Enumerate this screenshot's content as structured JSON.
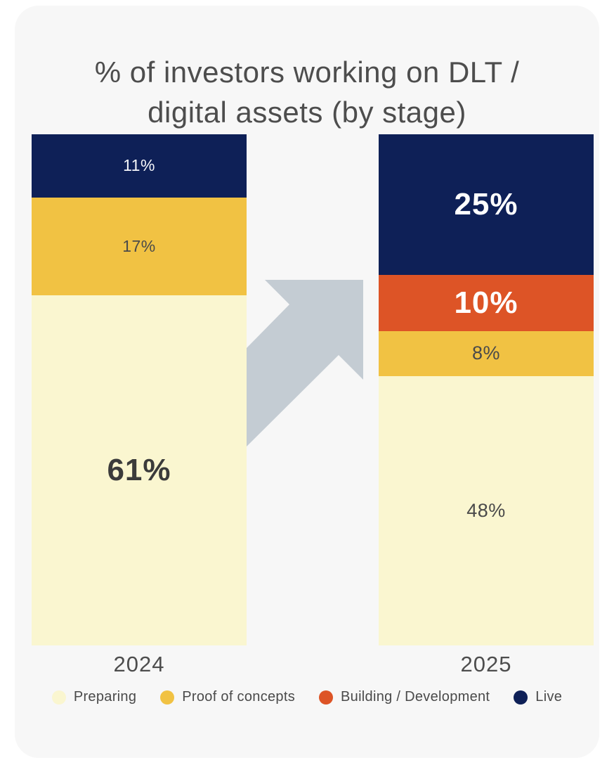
{
  "title": {
    "line1": "% of investors working on DLT /",
    "line2": "digital assets (by stage)"
  },
  "colors": {
    "page_bg": "#ffffff",
    "card_bg": "#f7f7f7",
    "title_text": "#4d4d4d",
    "axis_text": "#4d4d4d",
    "legend_text": "#4a4a4a",
    "navy": "#0e2057",
    "orange": "#dd5426",
    "yellow": "#f1c243",
    "cream": "#faf6d0",
    "arrow": "#c4ccd3"
  },
  "arrow": {
    "color": "#c4ccd3",
    "direction": "up-right"
  },
  "chart_data": {
    "type": "stacked-bar",
    "title": "% of investors working on DLT / digital assets (by stage)",
    "categories": [
      "2024",
      "2025"
    ],
    "series": [
      {
        "name": "Preparing",
        "color": "#faf6d0",
        "values": [
          61,
          48
        ]
      },
      {
        "name": "Proof of concepts",
        "color": "#f1c243",
        "values": [
          17,
          8
        ]
      },
      {
        "name": "Building / Development",
        "color": "#dd5426",
        "values": [
          0,
          10
        ]
      },
      {
        "name": "Live",
        "color": "#0e2057",
        "values": [
          11,
          25
        ]
      }
    ],
    "stack_order_top_to_bottom": [
      "Live",
      "Building / Development",
      "Proof of concepts",
      "Preparing"
    ],
    "value_label_format": "percent",
    "legend_position": "bottom",
    "grid": false,
    "bars": [
      {
        "category": "2024",
        "segments": [
          {
            "series": "Live",
            "value": 11,
            "label": "11%",
            "color": "#0e2057",
            "label_color": "#f5f6fa",
            "emphasis": "small"
          },
          {
            "series": "Proof of concepts",
            "value": 17,
            "label": "17%",
            "color": "#f1c243",
            "label_color": "#4a4a4a",
            "emphasis": "small"
          },
          {
            "series": "Preparing",
            "value": 61,
            "label": "61%",
            "color": "#faf6d0",
            "label_color": "#3b3b3b",
            "emphasis": "large"
          }
        ]
      },
      {
        "category": "2025",
        "segments": [
          {
            "series": "Live",
            "value": 25,
            "label": "25%",
            "color": "#0e2057",
            "label_color": "#ffffff",
            "emphasis": "large"
          },
          {
            "series": "Building / Development",
            "value": 10,
            "label": "10%",
            "color": "#dd5426",
            "label_color": "#ffffff",
            "emphasis": "large"
          },
          {
            "series": "Proof of concepts",
            "value": 8,
            "label": "8%",
            "color": "#f1c243",
            "label_color": "#4a4a4a",
            "emphasis": "medium"
          },
          {
            "series": "Preparing",
            "value": 48,
            "label": "48%",
            "color": "#faf6d0",
            "label_color": "#4a4a4a",
            "emphasis": "medium"
          }
        ]
      }
    ]
  },
  "legend": {
    "items": [
      {
        "label": "Preparing",
        "color": "#faf6d0"
      },
      {
        "label": "Proof of concepts",
        "color": "#f1c243"
      },
      {
        "label": "Building / Development",
        "color": "#dd5426"
      },
      {
        "label": "Live",
        "color": "#0e2057"
      }
    ]
  }
}
